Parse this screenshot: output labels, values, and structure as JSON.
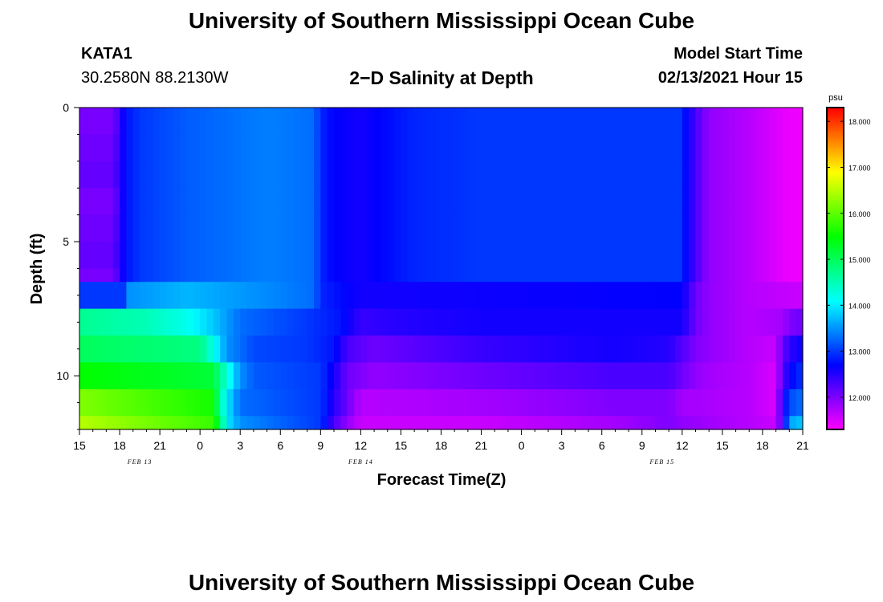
{
  "page": {
    "title": "University of Southern Mississippi Ocean Cube",
    "footer_title": "University of Southern Mississippi Ocean Cube",
    "station_id": "KATA1",
    "station_coords": "30.2580N 88.2130W",
    "model_start_label": "Model Start Time",
    "model_start_value": "02/13/2021 Hour 15"
  },
  "chart_data": {
    "type": "heatmap",
    "title": "2−D Salinity at Depth",
    "xlabel": "Forecast Time(Z)",
    "ylabel": "Depth (ft)",
    "x_tick_labels": [
      "15",
      "18",
      "21",
      "0",
      "3",
      "6",
      "9",
      "12",
      "15",
      "18",
      "21",
      "0",
      "3",
      "6",
      "9",
      "12",
      "15",
      "18",
      "21"
    ],
    "x_ticks_hours": [
      0,
      3,
      6,
      9,
      12,
      15,
      18,
      21,
      24,
      27,
      30,
      33,
      36,
      39,
      42,
      45,
      48,
      51,
      54
    ],
    "x_range_hours": [
      0,
      54
    ],
    "date_labels": [
      {
        "text": "FEB 13",
        "hour": 4.5
      },
      {
        "text": "FEB 14",
        "hour": 21
      },
      {
        "text": "FEB 15",
        "hour": 43.5
      }
    ],
    "y_tick_labels": [
      "0",
      "5",
      "10"
    ],
    "y_ticks_ft": [
      0,
      5,
      10
    ],
    "y_range_ft": [
      0,
      12
    ],
    "colorbar": {
      "unit": "psu",
      "range": [
        11.3,
        18.3
      ],
      "tick_labels": [
        "18.000",
        "17.000",
        "16.000",
        "15.000",
        "14.000",
        "13.000",
        "12.000"
      ],
      "ticks": [
        18,
        17,
        16,
        15,
        14,
        13,
        12
      ]
    },
    "layer_boundaries_ft": [
      0,
      1,
      2,
      3,
      4,
      5,
      6,
      7,
      8,
      9,
      10,
      11,
      12
    ],
    "layers": [
      {
        "depth_ft": "0-6.5",
        "profile": [
          [
            0,
            12.1
          ],
          [
            2.5,
            12.1
          ],
          [
            3.5,
            12.8
          ],
          [
            4.5,
            13.0
          ],
          [
            8,
            13.2
          ],
          [
            14,
            13.4
          ],
          [
            17.5,
            13.3
          ],
          [
            18,
            12.9
          ],
          [
            19,
            12.7
          ],
          [
            21,
            12.6
          ],
          [
            25,
            12.9
          ],
          [
            30,
            13.0
          ],
          [
            45,
            13.0
          ],
          [
            45.3,
            12.7
          ],
          [
            46,
            12.3
          ],
          [
            47,
            11.9
          ],
          [
            50,
            11.7
          ],
          [
            53,
            11.4
          ],
          [
            54,
            11.4
          ]
        ]
      },
      {
        "depth_ft": "6.5-7.5",
        "profile": [
          [
            0,
            13.0
          ],
          [
            3.5,
            13.0
          ],
          [
            3.7,
            13.5
          ],
          [
            8,
            13.7
          ],
          [
            13,
            13.5
          ],
          [
            17.5,
            13.3
          ],
          [
            18,
            12.9
          ],
          [
            19,
            12.8
          ],
          [
            21,
            12.6
          ],
          [
            45,
            12.7
          ],
          [
            46,
            12.1
          ],
          [
            47,
            11.9
          ],
          [
            50,
            11.7
          ],
          [
            54,
            11.6
          ]
        ]
      },
      {
        "depth_ft": "7.5-8.5",
        "profile": [
          [
            0,
            14.7
          ],
          [
            5,
            14.5
          ],
          [
            8,
            14.2
          ],
          [
            10,
            13.8
          ],
          [
            12,
            13.3
          ],
          [
            17,
            13.0
          ],
          [
            19.5,
            12.8
          ],
          [
            21,
            12.4
          ],
          [
            24,
            12.5
          ],
          [
            30,
            12.6
          ],
          [
            45,
            12.6
          ],
          [
            46,
            12.1
          ],
          [
            47,
            11.9
          ],
          [
            50,
            11.7
          ],
          [
            52.5,
            11.8
          ],
          [
            53,
            12.0
          ],
          [
            54,
            12.1
          ]
        ]
      },
      {
        "depth_ft": "8.5-9.5",
        "profile": [
          [
            0,
            15.0
          ],
          [
            9,
            14.8
          ],
          [
            10,
            14.2
          ],
          [
            11,
            13.5
          ],
          [
            13,
            13.1
          ],
          [
            17,
            13.0
          ],
          [
            19,
            12.8
          ],
          [
            20,
            12.3
          ],
          [
            22,
            12.1
          ],
          [
            30,
            12.4
          ],
          [
            40,
            12.6
          ],
          [
            44,
            12.5
          ],
          [
            46,
            12.0
          ],
          [
            47,
            11.9
          ],
          [
            50,
            11.7
          ],
          [
            52,
            11.6
          ],
          [
            52.5,
            12.2
          ],
          [
            53.5,
            12.6
          ]
        ]
      },
      {
        "depth_ft": "9.5-10.5",
        "profile": [
          [
            0,
            15.5
          ],
          [
            10,
            15.2
          ],
          [
            11,
            14.3
          ],
          [
            12,
            13.5
          ],
          [
            13,
            13.2
          ],
          [
            18,
            13.0
          ],
          [
            19,
            12.6
          ],
          [
            20,
            12.1
          ],
          [
            22,
            11.9
          ],
          [
            30,
            12.1
          ],
          [
            40,
            12.3
          ],
          [
            44,
            12.3
          ],
          [
            46,
            11.9
          ],
          [
            47,
            11.8
          ],
          [
            50,
            11.7
          ],
          [
            52,
            11.5
          ],
          [
            52.5,
            12.3
          ],
          [
            53.5,
            12.9
          ]
        ]
      },
      {
        "depth_ft": "10.5-11.5",
        "profile": [
          [
            0,
            16.2
          ],
          [
            10,
            15.6
          ],
          [
            10.5,
            14.6
          ],
          [
            11,
            14.0
          ],
          [
            12,
            13.3
          ],
          [
            18,
            13.0
          ],
          [
            19,
            12.5
          ],
          [
            20,
            12.1
          ],
          [
            21,
            11.7
          ],
          [
            30,
            11.8
          ],
          [
            40,
            12.0
          ],
          [
            44,
            12.0
          ],
          [
            45,
            11.8
          ],
          [
            50,
            11.7
          ],
          [
            52,
            11.5
          ],
          [
            52.5,
            12.6
          ],
          [
            53,
            13.1
          ],
          [
            54,
            13.3
          ]
        ]
      },
      {
        "depth_ft": "11.5-12",
        "profile": [
          [
            0,
            16.5
          ],
          [
            10,
            15.8
          ],
          [
            10.5,
            15.0
          ],
          [
            11,
            14.0
          ],
          [
            12,
            13.5
          ],
          [
            18,
            13.0
          ],
          [
            19,
            12.3
          ],
          [
            20,
            11.9
          ],
          [
            21,
            11.6
          ],
          [
            30,
            11.6
          ],
          [
            40,
            11.8
          ],
          [
            44,
            12.0
          ],
          [
            45,
            11.9
          ],
          [
            50,
            11.7
          ],
          [
            52,
            11.6
          ],
          [
            52.5,
            12.4
          ],
          [
            53,
            13.6
          ],
          [
            54,
            13.8
          ]
        ]
      }
    ],
    "grid": false,
    "legend": "colorbar-right"
  }
}
